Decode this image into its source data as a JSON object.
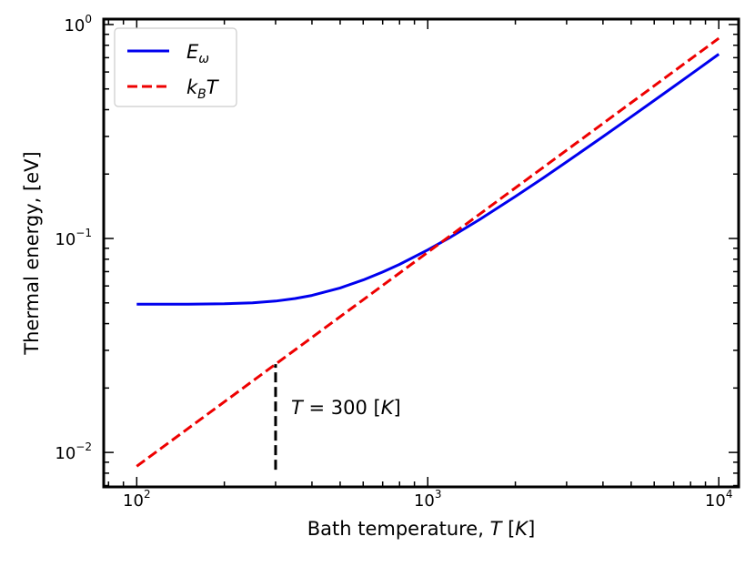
{
  "chart_data": {
    "type": "line",
    "xscale": "log",
    "yscale": "log",
    "xlim": [
      77,
      11700
    ],
    "ylim": [
      0.0069,
      1.06
    ],
    "xlabel": {
      "prefix": "Bath temperature, ",
      "var": "T",
      "unit": "K"
    },
    "ylabel": "Thermal energy, [eV]",
    "x_ticks": [
      {
        "value": 100,
        "base": "10",
        "exp": "2"
      },
      {
        "value": 1000,
        "base": "10",
        "exp": "3"
      },
      {
        "value": 10000,
        "base": "10",
        "exp": "4"
      }
    ],
    "y_ticks": [
      {
        "value": 0.01,
        "base": "10",
        "exp": "−2"
      },
      {
        "value": 0.1,
        "base": "10",
        "exp": "−1"
      },
      {
        "value": 1,
        "base": "10",
        "exp": "0"
      }
    ],
    "grid": false,
    "legend_position": "top-left",
    "series": [
      {
        "id": "e_omega",
        "legend": {
          "main": "E",
          "sub": "ω"
        },
        "color": "#0000ee",
        "style": "solid",
        "x": [
          100,
          150,
          200,
          250,
          300,
          350,
          400,
          500,
          600,
          700,
          800,
          1000,
          1200,
          1500,
          2000,
          2500,
          3000,
          4000,
          5000,
          6000,
          7000,
          8000,
          10000
        ],
        "y": [
          0.0493,
          0.0493,
          0.0495,
          0.05,
          0.051,
          0.0524,
          0.0542,
          0.0587,
          0.064,
          0.0697,
          0.0757,
          0.0884,
          0.1016,
          0.1221,
          0.1571,
          0.1924,
          0.2279,
          0.2993,
          0.3705,
          0.4417,
          0.513,
          0.5843,
          0.7268
        ]
      },
      {
        "id": "kbt",
        "legend": {
          "main": "k",
          "sub": "B",
          "tail": "T"
        },
        "color": "#ee0000",
        "style": "dashed",
        "x": [
          100,
          10000
        ],
        "y": [
          0.00862,
          0.862
        ]
      }
    ],
    "annotations": [
      {
        "id": "t300-marker",
        "x": 300,
        "y_from": 0.0083,
        "y_to": 0.02585,
        "color": "#000000",
        "style": "dashed"
      }
    ],
    "annotation_label": {
      "var": "T",
      "eq": " = 300 [",
      "var2": "K",
      "close": "]"
    }
  }
}
